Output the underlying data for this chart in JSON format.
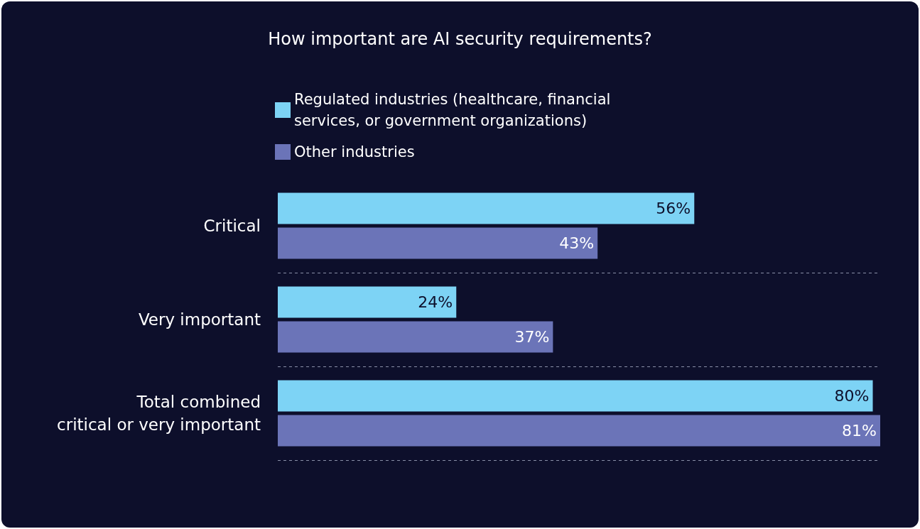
{
  "chart_data": {
    "type": "bar",
    "orientation": "horizontal",
    "title": "How important are AI security requirements?",
    "categories": [
      "Critical",
      "Very important",
      "Total combined\ncritical or very important"
    ],
    "series": [
      {
        "name": "Regulated industries (healthcare, financial services, or government organizations)",
        "color": "#7dd3f5",
        "values": [
          56,
          24,
          80
        ],
        "value_labels": [
          "56%",
          "24%",
          "80%"
        ]
      },
      {
        "name": "Other industries",
        "color": "#6b74b8",
        "values": [
          43,
          37,
          81
        ],
        "value_labels": [
          "43%",
          "37%",
          "81%"
        ]
      }
    ],
    "legend": "top",
    "grid": "y"
  }
}
